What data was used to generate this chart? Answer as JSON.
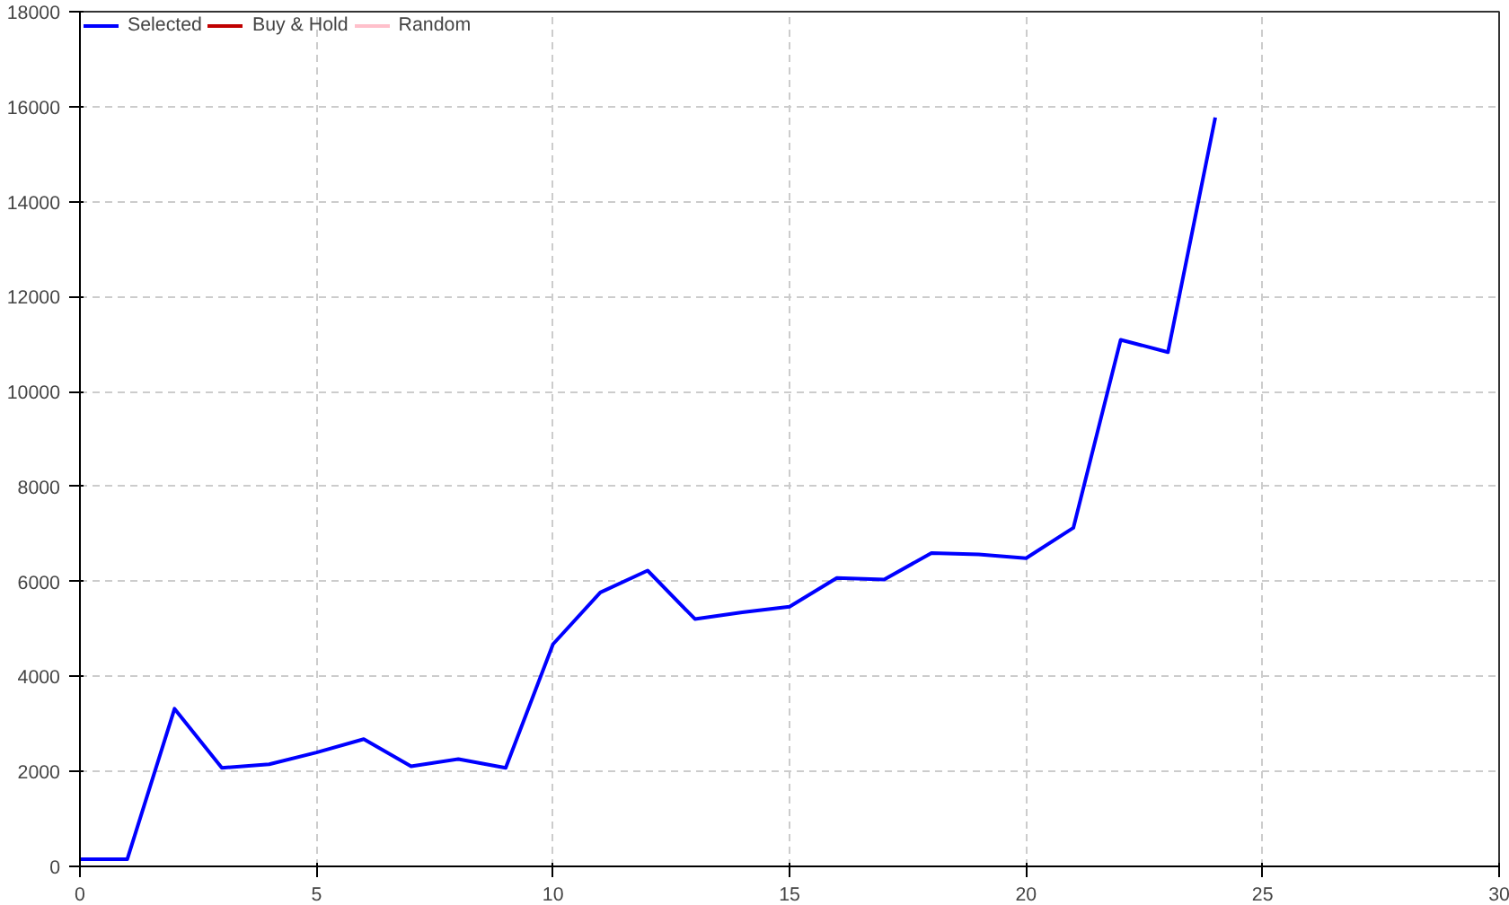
{
  "chart_data": {
    "type": "line",
    "x": [
      0,
      1,
      2,
      3,
      4,
      5,
      6,
      7,
      8,
      9,
      10,
      11,
      12,
      13,
      14,
      15,
      16,
      17,
      18,
      19,
      20,
      21,
      22,
      23,
      24
    ],
    "series": [
      {
        "name": "Selected",
        "color": "#0000ff",
        "values": [
          150,
          150,
          3320,
          2075,
          2150,
          2400,
          2680,
          2110,
          2260,
          2075,
          4680,
          5770,
          6230,
          5210,
          5350,
          5470,
          6075,
          6040,
          6600,
          6570,
          6490,
          7130,
          11090,
          10830,
          15770
        ]
      },
      {
        "name": "Buy & Hold",
        "color": "#c00000",
        "values": [
          null,
          null,
          null,
          null,
          null,
          null,
          null,
          null,
          null,
          null,
          null,
          null,
          null,
          null,
          null,
          null,
          null,
          null,
          null,
          null,
          null,
          null,
          null,
          null,
          null
        ]
      },
      {
        "name": "Random",
        "color": "#ffc0cb",
        "values": [
          null,
          null,
          null,
          null,
          null,
          null,
          null,
          null,
          null,
          null,
          null,
          null,
          null,
          null,
          null,
          null,
          null,
          null,
          null,
          null,
          null,
          null,
          null,
          null,
          null
        ]
      }
    ],
    "xlim": [
      0,
      30
    ],
    "xticks": [
      0,
      5,
      10,
      15,
      20,
      25,
      30
    ],
    "ylim": [
      0,
      18000
    ],
    "yticks": [
      0,
      2000,
      4000,
      6000,
      8000,
      10000,
      12000,
      14000,
      16000,
      18000
    ],
    "grid": true,
    "legend": "top left",
    "line_style": "solid",
    "marker": "none"
  }
}
